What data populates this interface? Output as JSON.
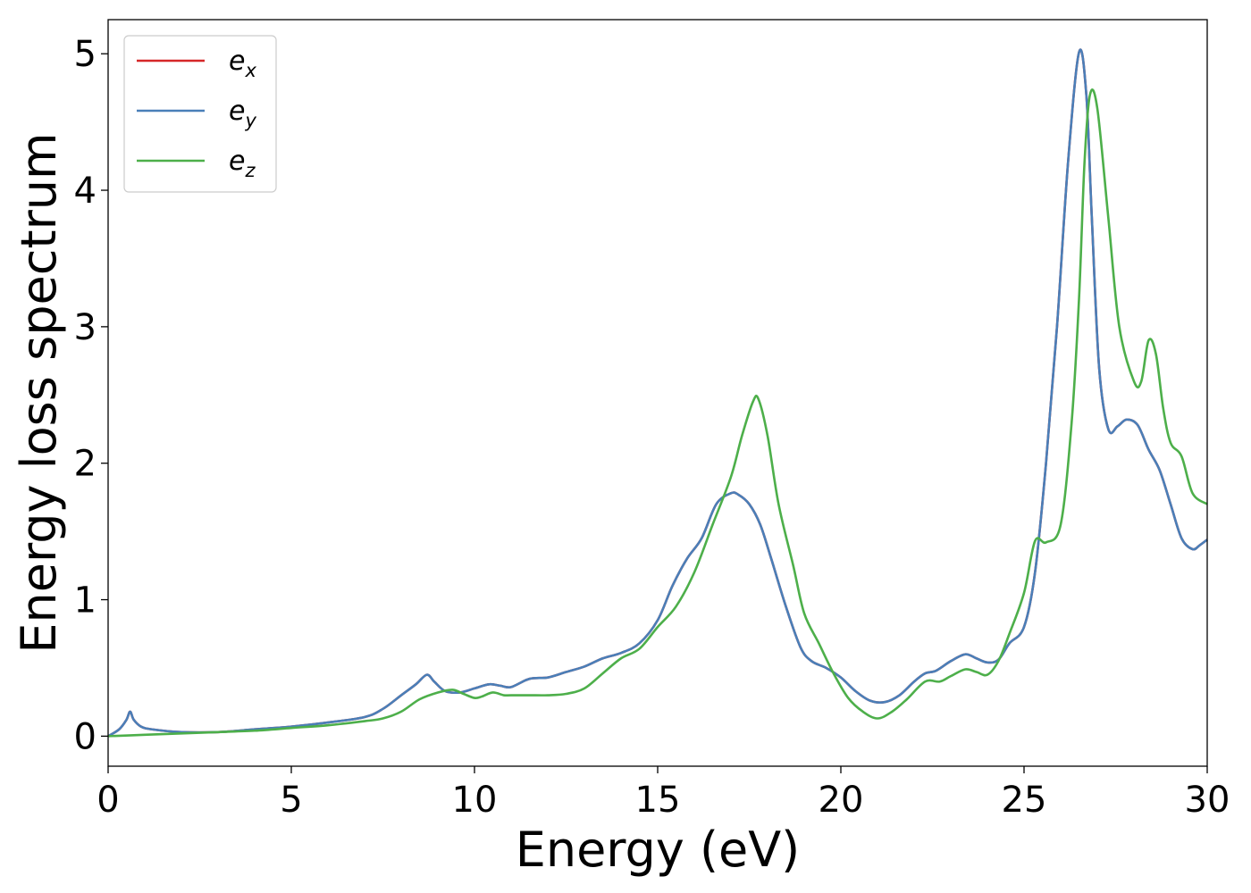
{
  "chart_data": {
    "type": "line",
    "xlabel": "Energy (eV)",
    "ylabel": "Energy loss spectrum",
    "xlim": [
      0,
      30
    ],
    "ylim": [
      -0.22,
      5.25
    ],
    "xticks": [
      0,
      5,
      10,
      15,
      20,
      25,
      30
    ],
    "yticks": [
      0,
      1,
      2,
      3,
      4,
      5
    ],
    "grid": false,
    "legend_position": "top-left",
    "series": [
      {
        "name": "e",
        "subscript": "x",
        "color": "#d62728",
        "x": [
          0,
          0.3,
          0.5,
          0.6,
          0.7,
          0.9,
          1.2,
          2,
          3,
          4,
          5,
          6,
          7,
          7.5,
          8,
          8.4,
          8.7,
          8.9,
          9.2,
          9.6,
          10,
          10.4,
          10.7,
          11,
          11.5,
          12,
          12.5,
          13,
          13.5,
          14,
          14.5,
          15,
          15.4,
          15.8,
          16.2,
          16.6,
          17,
          17.2,
          17.5,
          17.8,
          18.1,
          18.5,
          18.9,
          19.2,
          19.6,
          20,
          20.4,
          20.8,
          21.2,
          21.6,
          22,
          22.3,
          22.6,
          23,
          23.4,
          23.7,
          24,
          24.3,
          24.6,
          25,
          25.3,
          25.6,
          25.9,
          26.2,
          26.5,
          26.7,
          26.85,
          27.05,
          27.3,
          27.55,
          27.8,
          28.1,
          28.4,
          28.7,
          29,
          29.3,
          29.6,
          29.8,
          30
        ],
        "y": [
          0,
          0.05,
          0.12,
          0.18,
          0.12,
          0.07,
          0.05,
          0.03,
          0.03,
          0.05,
          0.07,
          0.1,
          0.14,
          0.2,
          0.3,
          0.38,
          0.45,
          0.4,
          0.33,
          0.32,
          0.35,
          0.38,
          0.37,
          0.36,
          0.42,
          0.43,
          0.47,
          0.51,
          0.57,
          0.61,
          0.68,
          0.85,
          1.1,
          1.3,
          1.45,
          1.7,
          1.78,
          1.77,
          1.7,
          1.55,
          1.3,
          0.95,
          0.65,
          0.55,
          0.5,
          0.43,
          0.33,
          0.26,
          0.25,
          0.3,
          0.4,
          0.46,
          0.48,
          0.55,
          0.6,
          0.57,
          0.54,
          0.56,
          0.68,
          0.8,
          1.2,
          2.0,
          3.0,
          4.2,
          5.01,
          4.7,
          3.8,
          2.7,
          2.25,
          2.27,
          2.32,
          2.28,
          2.1,
          1.95,
          1.7,
          1.45,
          1.37,
          1.4,
          1.44
        ]
      },
      {
        "name": "e",
        "subscript": "y",
        "color": "#4a7fb8",
        "x": [
          0,
          0.3,
          0.5,
          0.6,
          0.7,
          0.9,
          1.2,
          2,
          3,
          4,
          5,
          6,
          7,
          7.5,
          8,
          8.4,
          8.7,
          8.9,
          9.2,
          9.6,
          10,
          10.4,
          10.7,
          11,
          11.5,
          12,
          12.5,
          13,
          13.5,
          14,
          14.5,
          15,
          15.4,
          15.8,
          16.2,
          16.6,
          17,
          17.2,
          17.5,
          17.8,
          18.1,
          18.5,
          18.9,
          19.2,
          19.6,
          20,
          20.4,
          20.8,
          21.2,
          21.6,
          22,
          22.3,
          22.6,
          23,
          23.4,
          23.7,
          24,
          24.3,
          24.6,
          25,
          25.3,
          25.6,
          25.9,
          26.2,
          26.5,
          26.7,
          26.85,
          27.05,
          27.3,
          27.55,
          27.8,
          28.1,
          28.4,
          28.7,
          29,
          29.3,
          29.6,
          29.8,
          30
        ],
        "y": [
          0,
          0.05,
          0.12,
          0.18,
          0.12,
          0.07,
          0.05,
          0.03,
          0.03,
          0.05,
          0.07,
          0.1,
          0.14,
          0.2,
          0.3,
          0.38,
          0.45,
          0.4,
          0.33,
          0.32,
          0.35,
          0.38,
          0.37,
          0.36,
          0.42,
          0.43,
          0.47,
          0.51,
          0.57,
          0.61,
          0.68,
          0.85,
          1.1,
          1.3,
          1.45,
          1.7,
          1.78,
          1.77,
          1.7,
          1.55,
          1.3,
          0.95,
          0.65,
          0.55,
          0.5,
          0.43,
          0.33,
          0.26,
          0.25,
          0.3,
          0.4,
          0.46,
          0.48,
          0.55,
          0.6,
          0.57,
          0.54,
          0.56,
          0.68,
          0.8,
          1.2,
          2.0,
          3.0,
          4.2,
          5.01,
          4.7,
          3.8,
          2.7,
          2.25,
          2.27,
          2.32,
          2.28,
          2.1,
          1.95,
          1.7,
          1.45,
          1.37,
          1.4,
          1.44
        ]
      },
      {
        "name": "e",
        "subscript": "z",
        "color": "#4daf4a",
        "x": [
          0,
          1,
          2,
          3,
          4,
          5,
          6,
          7,
          7.5,
          8,
          8.5,
          9,
          9.4,
          9.7,
          10,
          10.2,
          10.5,
          10.8,
          11,
          11.5,
          12,
          12.5,
          13,
          13.5,
          14,
          14.5,
          15,
          15.5,
          16,
          16.5,
          17,
          17.3,
          17.6,
          17.75,
          18,
          18.3,
          18.7,
          19,
          19.4,
          19.8,
          20.2,
          20.6,
          21,
          21.4,
          21.8,
          22.3,
          22.7,
          23,
          23.4,
          23.7,
          24,
          24.3,
          24.6,
          25,
          25.3,
          25.6,
          26,
          26.3,
          26.5,
          26.65,
          26.8,
          27,
          27.3,
          27.6,
          28,
          28.2,
          28.4,
          28.6,
          28.8,
          29,
          29.3,
          29.6,
          30
        ],
        "y": [
          0,
          0.01,
          0.02,
          0.03,
          0.04,
          0.06,
          0.08,
          0.11,
          0.13,
          0.18,
          0.27,
          0.32,
          0.34,
          0.31,
          0.28,
          0.29,
          0.32,
          0.3,
          0.3,
          0.3,
          0.3,
          0.31,
          0.35,
          0.46,
          0.57,
          0.64,
          0.8,
          0.95,
          1.2,
          1.55,
          1.9,
          2.2,
          2.45,
          2.47,
          2.2,
          1.7,
          1.25,
          0.9,
          0.68,
          0.46,
          0.28,
          0.18,
          0.13,
          0.18,
          0.27,
          0.4,
          0.4,
          0.44,
          0.49,
          0.47,
          0.45,
          0.55,
          0.75,
          1.05,
          1.43,
          1.42,
          1.55,
          2.3,
          3.2,
          4.2,
          4.7,
          4.6,
          3.8,
          3.0,
          2.6,
          2.6,
          2.9,
          2.8,
          2.4,
          2.15,
          2.05,
          1.78,
          1.7
        ]
      }
    ]
  }
}
